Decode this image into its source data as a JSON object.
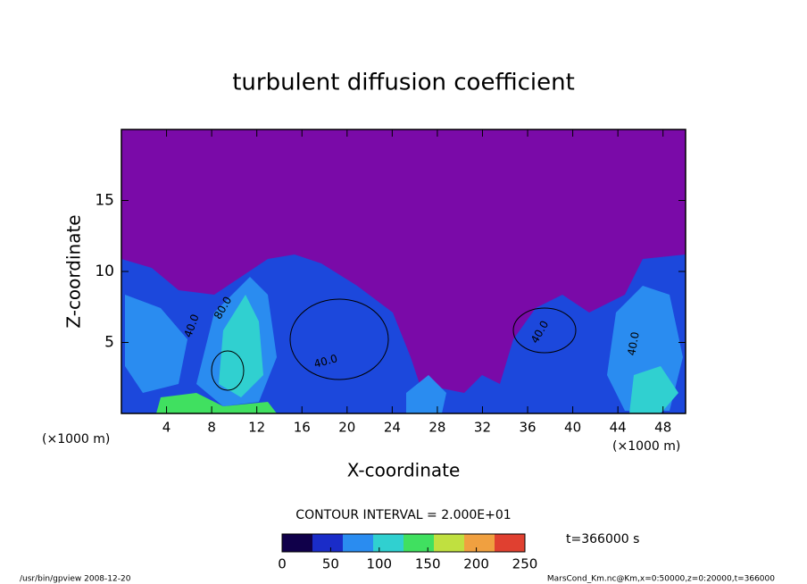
{
  "chart_data": {
    "type": "contour",
    "title": "turbulent diffusion coefficient",
    "x_label": "X-coordinate",
    "y_label": "Z-coordinate",
    "x_unit": "(×1000 m)",
    "y_unit": "(×1000 m)",
    "xlim": [
      0,
      50
    ],
    "xticks": [
      4,
      8,
      12,
      16,
      20,
      24,
      28,
      32,
      36,
      40,
      44,
      48
    ],
    "ylim": [
      0,
      20
    ],
    "yticks": [
      5,
      10,
      15
    ],
    "contour_labels": [
      "40.0",
      "80.0",
      "40.0",
      "40.0",
      "40.0"
    ],
    "contour_interval": "CONTOUR INTERVAL = 2.000E+01",
    "time_label": "t=366000 s",
    "colorbar": {
      "range": [
        0,
        250
      ],
      "ticks": [
        0,
        50,
        100,
        150,
        200,
        250
      ],
      "colors": [
        "#10004a",
        "#1a2cc8",
        "#2a8cf0",
        "#30d0d0",
        "#40e060",
        "#c0e040",
        "#f0a040",
        "#e04030"
      ]
    },
    "footer_left": "/usr/bin/gpview  2008-12-20",
    "footer_right": "MarsCond_Km.nc@Km,x=0:50000,z=0:20000,t=366000"
  }
}
